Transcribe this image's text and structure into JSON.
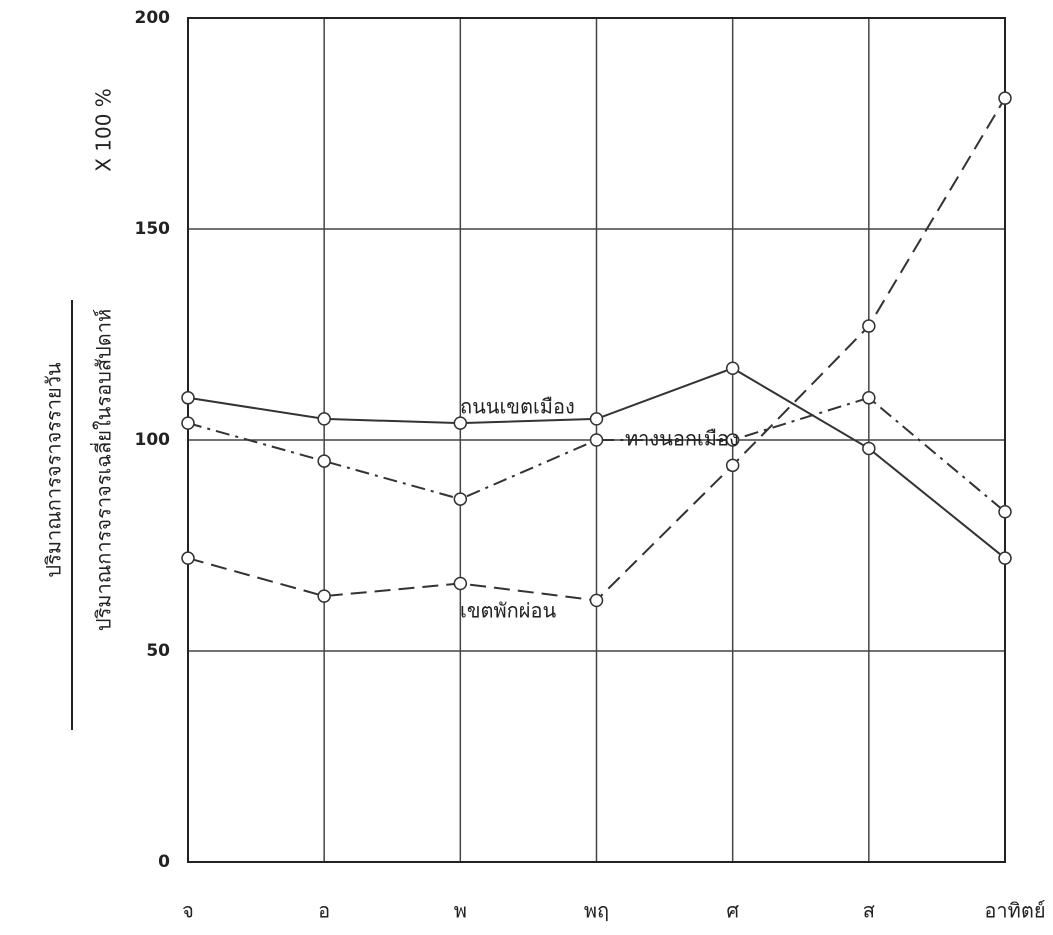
{
  "chart_data": {
    "type": "line",
    "y_label_numerator": "ปริมาณการจราจรรายวัน",
    "y_label_denominator": "ปริมาณการจราจรเฉลี่ยในรอบสัปดาห์",
    "y_label_factor": "X 100 %",
    "categories": [
      "จ",
      "อ",
      "พ",
      "พฤ",
      "ศ",
      "ส",
      "อาทิตย์"
    ],
    "series": [
      {
        "name": "ถนนเขตเมือง",
        "color": "#333333",
        "dash": "solid",
        "values": [
          110,
          105,
          104,
          105,
          117,
          98,
          72
        ]
      },
      {
        "name": "ทางนอกเมือง",
        "color": "#333333",
        "dash": "dashdot",
        "values": [
          104,
          95,
          86,
          100,
          100,
          110,
          83
        ]
      },
      {
        "name": "เขตพักผ่อน",
        "color": "#333333",
        "dash": "dashed",
        "values": [
          72,
          63,
          66,
          62,
          94,
          127,
          181
        ]
      }
    ],
    "ylim": [
      0,
      200
    ],
    "yticks": [
      0,
      50,
      100,
      150,
      200
    ],
    "grid": true
  }
}
